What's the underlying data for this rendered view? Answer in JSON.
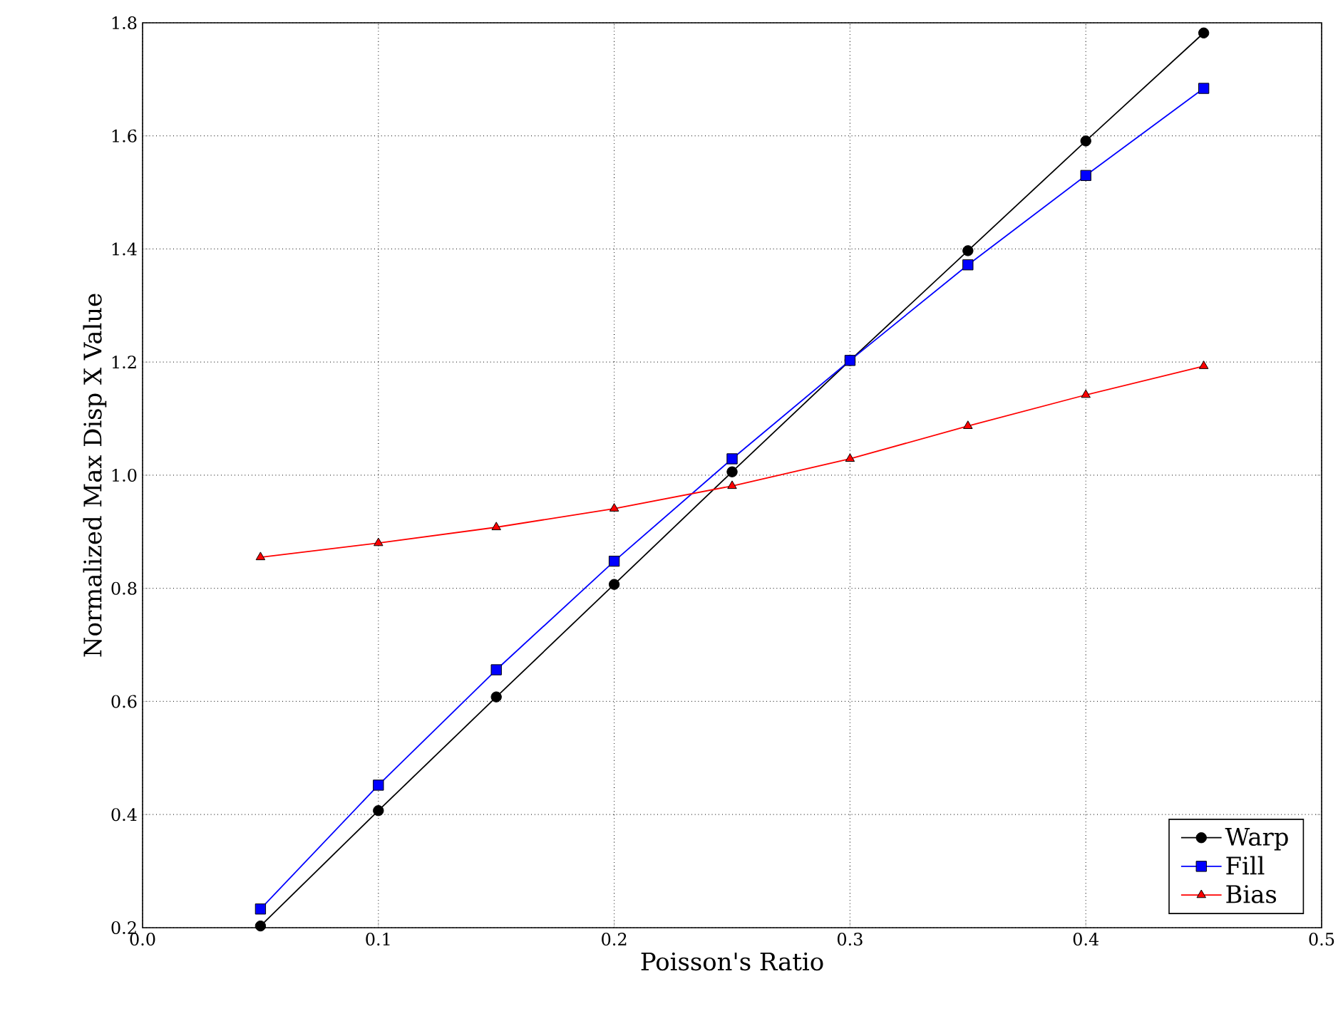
{
  "chart_data": {
    "type": "line",
    "xlabel": "Poisson's Ratio",
    "ylabel": "Normalized Max Disp X Value",
    "x": [
      0.05,
      0.1,
      0.15,
      0.2,
      0.25,
      0.3,
      0.35,
      0.4,
      0.45
    ],
    "series": [
      {
        "name": "Warp",
        "color": "#000000",
        "marker": "circle",
        "values": [
          0.203,
          0.407,
          0.608,
          0.807,
          1.006,
          1.203,
          1.397,
          1.591,
          1.782
        ]
      },
      {
        "name": "Fill",
        "color": "#0000ff",
        "marker": "square",
        "values": [
          0.233,
          0.452,
          0.656,
          0.848,
          1.029,
          1.203,
          1.372,
          1.53,
          1.684
        ]
      },
      {
        "name": "Bias",
        "color": "#ff0000",
        "marker": "triangle",
        "values": [
          0.855,
          0.88,
          0.908,
          0.941,
          0.981,
          1.029,
          1.087,
          1.142,
          1.193
        ]
      }
    ],
    "xlim": [
      0,
      0.5
    ],
    "ylim": [
      0.2,
      1.8
    ],
    "xticks": [
      {
        "value": 0,
        "label": "0.0"
      },
      0.1,
      0.2,
      0.3,
      0.4,
      0.5
    ],
    "yticks": [
      0.2,
      0.4,
      0.6,
      0.8,
      {
        "value": 1.0,
        "label": "1.0"
      },
      1.2,
      1.4,
      1.6,
      1.8
    ],
    "grid": true,
    "legend": "bottom right",
    "line_style": "solid"
  }
}
